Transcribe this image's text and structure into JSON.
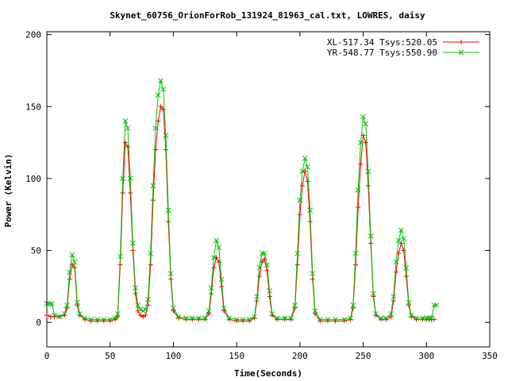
{
  "chart_data": {
    "type": "line",
    "title": "Skynet_60756_OrionForRob_131924_81963_cal.txt, LOWRES, daisy",
    "xlabel": "Time(Seconds)",
    "ylabel": "Power (Kelvin)",
    "xlim": [
      0,
      350
    ],
    "ylim": [
      -17,
      202
    ],
    "xticks": [
      0,
      50,
      100,
      150,
      200,
      250,
      300,
      350
    ],
    "yticks": [
      0,
      50,
      100,
      150,
      200
    ],
    "grid": false,
    "legend_position": "top-right",
    "series": [
      {
        "name": "XL-517.34 Tsys:520.05",
        "color": "#ff0000",
        "marker": "plus",
        "points": [
          [
            0,
            5
          ],
          [
            3,
            4
          ],
          [
            6,
            4
          ],
          [
            10,
            4
          ],
          [
            14,
            5
          ],
          [
            16,
            10
          ],
          [
            18,
            30
          ],
          [
            20,
            40
          ],
          [
            22,
            38
          ],
          [
            24,
            12
          ],
          [
            26,
            5
          ],
          [
            30,
            2
          ],
          [
            35,
            1
          ],
          [
            40,
            1
          ],
          [
            45,
            1
          ],
          [
            50,
            1
          ],
          [
            54,
            2
          ],
          [
            56,
            4
          ],
          [
            58,
            40
          ],
          [
            60,
            90
          ],
          [
            62,
            125
          ],
          [
            64,
            122
          ],
          [
            66,
            90
          ],
          [
            68,
            50
          ],
          [
            70,
            20
          ],
          [
            72,
            8
          ],
          [
            74,
            5
          ],
          [
            76,
            4
          ],
          [
            78,
            5
          ],
          [
            80,
            12
          ],
          [
            82,
            40
          ],
          [
            84,
            85
          ],
          [
            86,
            120
          ],
          [
            88,
            140
          ],
          [
            90,
            150
          ],
          [
            92,
            148
          ],
          [
            94,
            120
          ],
          [
            96,
            70
          ],
          [
            98,
            30
          ],
          [
            100,
            8
          ],
          [
            104,
            3
          ],
          [
            110,
            2
          ],
          [
            115,
            2
          ],
          [
            120,
            2
          ],
          [
            125,
            2
          ],
          [
            128,
            6
          ],
          [
            130,
            20
          ],
          [
            132,
            38
          ],
          [
            134,
            45
          ],
          [
            136,
            42
          ],
          [
            138,
            25
          ],
          [
            140,
            8
          ],
          [
            144,
            2
          ],
          [
            150,
            1
          ],
          [
            155,
            1
          ],
          [
            160,
            1
          ],
          [
            164,
            3
          ],
          [
            166,
            15
          ],
          [
            168,
            32
          ],
          [
            170,
            42
          ],
          [
            172,
            44
          ],
          [
            174,
            36
          ],
          [
            176,
            18
          ],
          [
            178,
            5
          ],
          [
            182,
            2
          ],
          [
            188,
            2
          ],
          [
            193,
            2
          ],
          [
            196,
            10
          ],
          [
            198,
            40
          ],
          [
            200,
            75
          ],
          [
            202,
            95
          ],
          [
            204,
            105
          ],
          [
            206,
            98
          ],
          [
            208,
            70
          ],
          [
            210,
            30
          ],
          [
            212,
            6
          ],
          [
            216,
            1
          ],
          [
            222,
            1
          ],
          [
            228,
            1
          ],
          [
            235,
            1
          ],
          [
            240,
            2
          ],
          [
            242,
            10
          ],
          [
            244,
            40
          ],
          [
            246,
            80
          ],
          [
            248,
            110
          ],
          [
            250,
            130
          ],
          [
            252,
            125
          ],
          [
            254,
            95
          ],
          [
            256,
            55
          ],
          [
            258,
            18
          ],
          [
            260,
            5
          ],
          [
            264,
            2
          ],
          [
            268,
            2
          ],
          [
            272,
            4
          ],
          [
            274,
            15
          ],
          [
            276,
            35
          ],
          [
            278,
            48
          ],
          [
            280,
            55
          ],
          [
            282,
            50
          ],
          [
            284,
            32
          ],
          [
            286,
            12
          ],
          [
            288,
            4
          ],
          [
            292,
            2
          ],
          [
            297,
            2
          ],
          [
            300,
            2
          ],
          [
            302,
            2
          ],
          [
            304,
            2
          ],
          [
            306,
            2
          ]
        ]
      },
      {
        "name": "YR-548.77 Tsys:550.90",
        "color": "#00c000",
        "marker": "cross",
        "points": [
          [
            0,
            13
          ],
          [
            2,
            13
          ],
          [
            4,
            13
          ],
          [
            6,
            5
          ],
          [
            10,
            4
          ],
          [
            14,
            6
          ],
          [
            16,
            12
          ],
          [
            18,
            35
          ],
          [
            20,
            47
          ],
          [
            22,
            42
          ],
          [
            24,
            14
          ],
          [
            26,
            6
          ],
          [
            30,
            3
          ],
          [
            35,
            2
          ],
          [
            40,
            2
          ],
          [
            45,
            2
          ],
          [
            50,
            2
          ],
          [
            54,
            3
          ],
          [
            56,
            6
          ],
          [
            58,
            46
          ],
          [
            60,
            100
          ],
          [
            62,
            140
          ],
          [
            64,
            135
          ],
          [
            66,
            100
          ],
          [
            68,
            55
          ],
          [
            70,
            24
          ],
          [
            72,
            12
          ],
          [
            74,
            9
          ],
          [
            76,
            8
          ],
          [
            78,
            9
          ],
          [
            80,
            16
          ],
          [
            82,
            48
          ],
          [
            84,
            95
          ],
          [
            86,
            135
          ],
          [
            88,
            158
          ],
          [
            90,
            168
          ],
          [
            92,
            162
          ],
          [
            94,
            130
          ],
          [
            96,
            78
          ],
          [
            98,
            34
          ],
          [
            100,
            10
          ],
          [
            104,
            4
          ],
          [
            110,
            3
          ],
          [
            115,
            3
          ],
          [
            120,
            3
          ],
          [
            125,
            3
          ],
          [
            128,
            8
          ],
          [
            130,
            24
          ],
          [
            132,
            45
          ],
          [
            134,
            57
          ],
          [
            136,
            52
          ],
          [
            138,
            30
          ],
          [
            140,
            10
          ],
          [
            144,
            3
          ],
          [
            150,
            2
          ],
          [
            155,
            2
          ],
          [
            160,
            2
          ],
          [
            164,
            4
          ],
          [
            166,
            18
          ],
          [
            168,
            38
          ],
          [
            170,
            48
          ],
          [
            172,
            48
          ],
          [
            174,
            40
          ],
          [
            176,
            22
          ],
          [
            178,
            6
          ],
          [
            182,
            3
          ],
          [
            188,
            3
          ],
          [
            193,
            3
          ],
          [
            196,
            12
          ],
          [
            198,
            48
          ],
          [
            200,
            85
          ],
          [
            202,
            105
          ],
          [
            204,
            114
          ],
          [
            206,
            108
          ],
          [
            208,
            78
          ],
          [
            210,
            34
          ],
          [
            212,
            8
          ],
          [
            216,
            2
          ],
          [
            222,
            2
          ],
          [
            228,
            2
          ],
          [
            235,
            2
          ],
          [
            240,
            3
          ],
          [
            242,
            12
          ],
          [
            244,
            48
          ],
          [
            246,
            92
          ],
          [
            248,
            125
          ],
          [
            250,
            143
          ],
          [
            252,
            138
          ],
          [
            254,
            105
          ],
          [
            256,
            60
          ],
          [
            258,
            20
          ],
          [
            260,
            6
          ],
          [
            264,
            3
          ],
          [
            268,
            3
          ],
          [
            272,
            6
          ],
          [
            274,
            18
          ],
          [
            276,
            42
          ],
          [
            278,
            57
          ],
          [
            280,
            64
          ],
          [
            282,
            58
          ],
          [
            284,
            38
          ],
          [
            286,
            14
          ],
          [
            288,
            5
          ],
          [
            292,
            3
          ],
          [
            297,
            3
          ],
          [
            300,
            3
          ],
          [
            302,
            3
          ],
          [
            304,
            3
          ],
          [
            306,
            12
          ],
          [
            308,
            12
          ]
        ]
      }
    ]
  }
}
